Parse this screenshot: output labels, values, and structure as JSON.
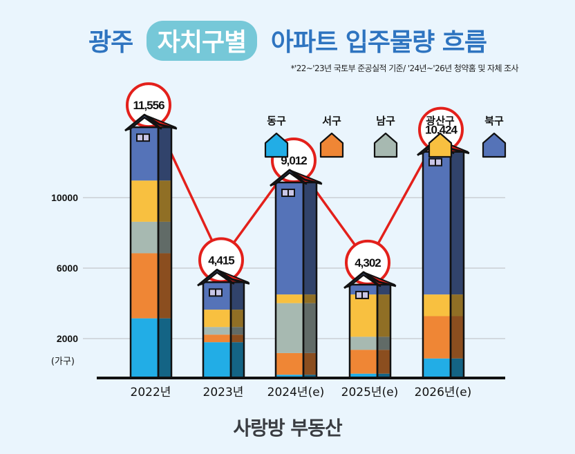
{
  "title": {
    "prefix": "광주",
    "highlight": "자치구별",
    "suffix": "아파트 입주물량 흐름"
  },
  "note": "*'22~'23년 국토부 준공실적 기준/ '24년~'26년 청약홈 및 자체 조사",
  "colors": {
    "title_blue": "#2e74c0",
    "pill": "#76c8d8",
    "line_red": "#e3201b",
    "background": "#eaf5fd"
  },
  "chart_data": {
    "type": "bar",
    "stacked": true,
    "style": "house-shaped stacked bars with total-value circles connected by a red line",
    "title": "광주 자치구별 아파트 입주물량 흐름",
    "ylabel": "(가구)",
    "xlabel": "",
    "yticks": [
      2000,
      6000,
      10000
    ],
    "ylim": [
      0,
      12000
    ],
    "grid": true,
    "legend_position": "top-right",
    "categories": [
      "2022년",
      "2023년",
      "2024년(e)",
      "2025년(e)",
      "2026년(e)"
    ],
    "totals": [
      11556,
      4415,
      9012,
      4302,
      10424
    ],
    "total_labels": [
      "11,556",
      "4,415",
      "9,012",
      "4,302",
      "10,424"
    ],
    "series": [
      {
        "name": "동구",
        "color": "#22ade6",
        "values": [
          2750,
          1650,
          150,
          200,
          900
        ],
        "estimated": true
      },
      {
        "name": "서구",
        "color": "#ef8635",
        "values": [
          3000,
          350,
          1000,
          1100,
          1950
        ],
        "estimated": true
      },
      {
        "name": "남구",
        "color": "#a7b9b1",
        "values": [
          1450,
          350,
          2300,
          600,
          0
        ],
        "estimated": true
      },
      {
        "name": "광산구",
        "color": "#f8c040",
        "values": [
          1900,
          800,
          400,
          1950,
          1000
        ],
        "estimated": true
      },
      {
        "name": "북구",
        "color": "#5573b8",
        "values": [
          2456,
          1265,
          5162,
          452,
          6574
        ],
        "estimated": true
      }
    ]
  },
  "logo": {
    "part1": "사랑방",
    "part2": "부동산"
  }
}
